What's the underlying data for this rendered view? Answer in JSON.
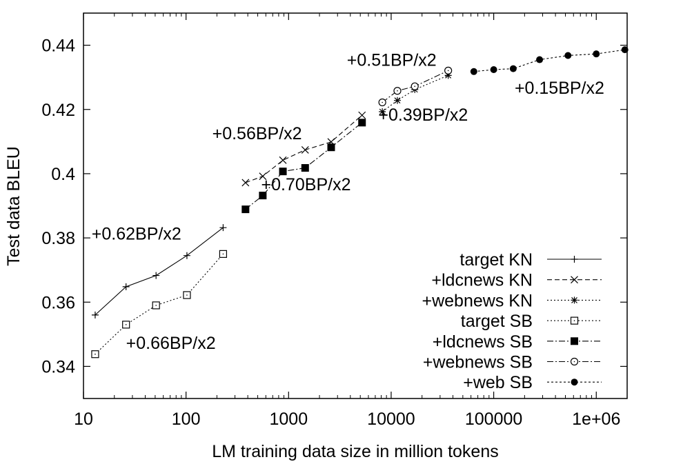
{
  "chart_data": {
    "type": "line",
    "xlabel": "LM training data size in million tokens",
    "ylabel": "Test data BLEU",
    "x_scale": "log",
    "xlim": [
      10,
      2000000
    ],
    "ylim": [
      0.33,
      0.45
    ],
    "x_ticks": [
      10,
      100,
      1000,
      10000,
      100000,
      1000000
    ],
    "x_tick_labels": [
      "10",
      "100",
      "1000",
      "10000",
      "100000",
      "1e+06"
    ],
    "y_ticks": [
      0.34,
      0.36,
      0.38,
      0.4,
      0.42,
      0.44
    ],
    "y_tick_labels": [
      "0.34",
      "0.36",
      "0.38",
      "0.4",
      "0.42",
      "0.44"
    ],
    "grid": false,
    "legend_position": "bottom-right",
    "series": [
      {
        "name": "target KN",
        "marker": "plus",
        "dash": "solid",
        "points": [
          [
            13,
            0.356
          ],
          [
            26,
            0.3648
          ],
          [
            51,
            0.3683
          ],
          [
            102,
            0.3745
          ],
          [
            230,
            0.3832
          ]
        ]
      },
      {
        "name": "+ldcnews KN",
        "marker": "cross",
        "dash": "dashed",
        "points": [
          [
            380,
            0.3972
          ],
          [
            560,
            0.3992
          ],
          [
            880,
            0.4042
          ],
          [
            1450,
            0.4074
          ],
          [
            2600,
            0.4099
          ],
          [
            5200,
            0.4182
          ]
        ]
      },
      {
        "name": "+webnews KN",
        "marker": "asterisk",
        "dash": "dotted",
        "points": [
          [
            8200,
            0.4193
          ],
          [
            11500,
            0.4228
          ],
          [
            17000,
            0.4262
          ],
          [
            36000,
            0.4306
          ]
        ]
      },
      {
        "name": "target SB",
        "marker": "square-open",
        "dash": "dotted",
        "points": [
          [
            13,
            0.3438
          ],
          [
            26,
            0.353
          ],
          [
            51,
            0.359
          ],
          [
            102,
            0.3622
          ],
          [
            230,
            0.375
          ]
        ]
      },
      {
        "name": "+ldcnews SB",
        "marker": "square-filled",
        "dash": "dashdot",
        "points": [
          [
            380,
            0.3889
          ],
          [
            560,
            0.3932
          ],
          [
            880,
            0.4007
          ],
          [
            1450,
            0.4018
          ],
          [
            2600,
            0.4082
          ],
          [
            5200,
            0.4159
          ]
        ]
      },
      {
        "name": "+webnews SB",
        "marker": "circle-open",
        "dash": "dashdot",
        "points": [
          [
            8200,
            0.4222
          ],
          [
            11500,
            0.4258
          ],
          [
            17000,
            0.4272
          ],
          [
            36000,
            0.4321
          ]
        ]
      },
      {
        "name": "+web SB",
        "marker": "circle-filled",
        "dash": "densedot",
        "points": [
          [
            64000,
            0.4318
          ],
          [
            100000,
            0.4324
          ],
          [
            155000,
            0.4327
          ],
          [
            280000,
            0.4355
          ],
          [
            530000,
            0.4368
          ],
          [
            1000000,
            0.4373
          ],
          [
            1900000,
            0.4386
          ]
        ]
      }
    ],
    "annotations": [
      {
        "text": "+0.62BP/x2",
        "x": 12,
        "y": 0.3795
      },
      {
        "text": "+0.66BP/x2",
        "x": 26,
        "y": 0.3455
      },
      {
        "text": "+0.56BP/x2",
        "x": 180,
        "y": 0.4107
      },
      {
        "text": "+0.70BP/x2",
        "x": 540,
        "y": 0.3948
      },
      {
        "text": "+0.51BP/x2",
        "x": 3700,
        "y": 0.4336
      },
      {
        "text": "+0.39BP/x2",
        "x": 7500,
        "y": 0.4165
      },
      {
        "text": "+0.15BP/x2",
        "x": 160000,
        "y": 0.4249
      }
    ]
  }
}
